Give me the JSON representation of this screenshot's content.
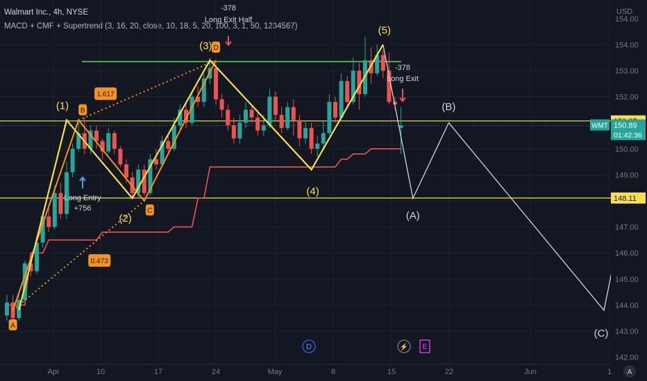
{
  "header": {
    "symbol_line": "Walmart Inc., 4h, NYSE",
    "indicator_line": "MACD + CMF + Supertrend (3, 16, 20, close, 10, 18, 5, 20, 100, 3, 1, 50, 1234567)"
  },
  "colors": {
    "background": "#131722",
    "up": "#26a69a",
    "down": "#ef5350",
    "harmonic": "#f7931a",
    "elliott": "#f9e04b",
    "supertrend": "#ef5350",
    "resistance": "#4caf50",
    "projection": "#d1d4dc",
    "price_tag": "#26a69a"
  },
  "chart_data": {
    "type": "candlestick",
    "title": "Walmart Inc., 4h, NYSE",
    "price_unit": "USD",
    "y_ticks": [
      143.0,
      144.0,
      145.0,
      146.0,
      147.0,
      148.0,
      149.0,
      150.0,
      151.0,
      152.0,
      153.0,
      154.0
    ],
    "ylim": [
      142.0,
      155.2
    ],
    "x_ticks": [
      "Apr",
      "10",
      "17",
      "24",
      "May",
      "8",
      "15",
      "22",
      "Jun",
      "1"
    ],
    "candles": [
      [
        0,
        143.6,
        144.1,
        144.4,
        143.4
      ],
      [
        1,
        144.1,
        143.5,
        144.4,
        143.3
      ],
      [
        2,
        143.5,
        144.2,
        144.5,
        143.4
      ],
      [
        3,
        144.2,
        145.6,
        145.7,
        144.1
      ],
      [
        4,
        145.6,
        145.3,
        145.9,
        145.1
      ],
      [
        5,
        145.3,
        146.4,
        146.6,
        145.2
      ],
      [
        6,
        146.4,
        147.4,
        147.6,
        146.2
      ],
      [
        7,
        147.4,
        147.0,
        147.8,
        146.8
      ],
      [
        8,
        147.0,
        148.3,
        148.6,
        146.9
      ],
      [
        9,
        148.3,
        147.5,
        148.7,
        147.3
      ],
      [
        10,
        147.5,
        149.1,
        149.5,
        147.3
      ],
      [
        11,
        149.1,
        150.0,
        150.2,
        148.9
      ],
      [
        12,
        150.0,
        150.6,
        151.0,
        149.9
      ],
      [
        13,
        150.6,
        150.0,
        151.2,
        149.8
      ],
      [
        14,
        150.0,
        150.7,
        150.9,
        149.8
      ],
      [
        15,
        150.7,
        150.3,
        150.9,
        150.0
      ],
      [
        16,
        150.3,
        149.9,
        150.4,
        149.6
      ],
      [
        17,
        149.9,
        150.6,
        150.8,
        149.8
      ],
      [
        18,
        150.6,
        150.0,
        150.7,
        149.8
      ],
      [
        19,
        150.0,
        149.4,
        150.1,
        149.3
      ],
      [
        20,
        149.4,
        148.9,
        149.6,
        148.7
      ],
      [
        21,
        148.9,
        148.3,
        149.1,
        148.1
      ],
      [
        22,
        148.3,
        149.2,
        149.4,
        148.1
      ],
      [
        23,
        149.2,
        148.3,
        149.4,
        148.2
      ],
      [
        24,
        148.3,
        149.6,
        149.8,
        148.2
      ],
      [
        25,
        149.6,
        149.4,
        150.0,
        149.2
      ],
      [
        26,
        149.4,
        150.3,
        150.5,
        149.3
      ],
      [
        27,
        150.3,
        150.0,
        150.6,
        149.8
      ],
      [
        28,
        150.0,
        150.9,
        151.2,
        149.9
      ],
      [
        29,
        150.9,
        151.5,
        151.7,
        150.7
      ],
      [
        30,
        151.5,
        151.0,
        151.8,
        150.8
      ],
      [
        31,
        151.0,
        152.0,
        152.2,
        150.9
      ],
      [
        32,
        152.0,
        151.8,
        152.4,
        151.6
      ],
      [
        33,
        151.8,
        152.7,
        152.9,
        151.6
      ],
      [
        34,
        152.7,
        153.1,
        153.5,
        152.5
      ],
      [
        35,
        153.1,
        151.9,
        153.3,
        151.7
      ],
      [
        36,
        151.9,
        151.5,
        152.1,
        151.2
      ],
      [
        37,
        151.5,
        150.9,
        151.7,
        150.7
      ],
      [
        38,
        150.9,
        150.4,
        151.2,
        150.2
      ],
      [
        39,
        150.4,
        151.0,
        151.3,
        150.2
      ],
      [
        40,
        151.0,
        151.5,
        151.8,
        150.8
      ],
      [
        41,
        151.5,
        151.2,
        151.7,
        151.0
      ],
      [
        42,
        151.2,
        150.7,
        151.5,
        150.5
      ],
      [
        43,
        150.7,
        150.9,
        151.3,
        150.5
      ],
      [
        44,
        150.9,
        152.0,
        152.3,
        150.8
      ],
      [
        45,
        152.0,
        151.3,
        152.2,
        151.1
      ],
      [
        46,
        151.3,
        150.8,
        151.6,
        150.6
      ],
      [
        47,
        150.8,
        151.6,
        151.8,
        150.7
      ],
      [
        48,
        151.6,
        151.1,
        151.9,
        150.5
      ],
      [
        49,
        151.1,
        150.4,
        151.3,
        150.1
      ],
      [
        50,
        150.4,
        150.8,
        151.1,
        150.2
      ],
      [
        51,
        150.8,
        150.0,
        151.0,
        149.8
      ],
      [
        52,
        150.0,
        150.2,
        150.5,
        149.7
      ],
      [
        53,
        150.2,
        150.6,
        151.1,
        150.0
      ],
      [
        54,
        150.6,
        151.8,
        152.1,
        150.5
      ],
      [
        55,
        151.8,
        151.2,
        152.0,
        151.0
      ],
      [
        56,
        151.2,
        152.6,
        152.9,
        151.1
      ],
      [
        57,
        152.6,
        151.8,
        152.8,
        151.6
      ],
      [
        58,
        151.8,
        153.0,
        153.5,
        151.7
      ],
      [
        59,
        153.0,
        152.1,
        153.3,
        151.5
      ],
      [
        60,
        152.1,
        153.4,
        154.3,
        152.0
      ],
      [
        61,
        153.4,
        152.9,
        153.9,
        152.5
      ],
      [
        62,
        152.9,
        153.6,
        154.0,
        152.8
      ],
      [
        63,
        153.6,
        153.0,
        153.8,
        152.7
      ],
      [
        64,
        153.0,
        151.8,
        153.7,
        151.7
      ],
      [
        65,
        151.8,
        151.7,
        152.0,
        151.5
      ],
      [
        66,
        150.8,
        150.9,
        151.6,
        149.8
      ]
    ],
    "supertrend": [
      [
        0,
        144.0
      ],
      [
        3,
        144.0
      ],
      [
        4,
        146.0
      ],
      [
        6,
        146.0
      ],
      [
        7,
        146.5
      ],
      [
        15,
        146.5
      ],
      [
        16,
        146.8
      ],
      [
        27,
        146.8
      ],
      [
        28,
        147.0
      ],
      [
        31,
        147.0
      ],
      [
        32,
        148.1
      ],
      [
        33,
        148.1
      ],
      [
        34,
        149.3
      ],
      [
        55,
        149.3
      ],
      [
        56,
        149.6
      ],
      [
        57,
        149.6
      ],
      [
        58,
        149.8
      ],
      [
        60,
        149.8
      ],
      [
        61,
        150.0
      ],
      [
        66,
        150.0
      ]
    ],
    "resistance_level": 153.35,
    "horizontal_levels": [
      151.07,
      148.11
    ],
    "last_price": 150.89,
    "countdown": "01:42:36",
    "ticker": "WMT",
    "harmonic_points": [
      {
        "label": "A",
        "x": 1,
        "price": 143.8
      },
      {
        "label": "B",
        "x": 12,
        "price": 151.1
      },
      {
        "label": "C",
        "x": 23,
        "price": 148.0
      },
      {
        "label": "D",
        "x": 35,
        "price": 153.4
      }
    ],
    "fib_ratios": [
      "1.617",
      "0.473"
    ],
    "elliott_points": [
      {
        "label": "(1)",
        "x": 10,
        "price": 151.1
      },
      {
        "label": "(2)",
        "x": 21,
        "price": 148.1
      },
      {
        "label": "(3)",
        "x": 34,
        "price": 153.4
      },
      {
        "label": "(4)",
        "x": 51,
        "price": 149.2
      },
      {
        "label": "(5)",
        "x": 63,
        "price": 154.0
      }
    ],
    "projection_points": [
      {
        "label": "",
        "x": 63,
        "price": 154.0
      },
      {
        "label": "(A)",
        "x": 68,
        "price": 148.1
      },
      {
        "label": "(B)",
        "x": 74,
        "price": 151.0
      },
      {
        "label": "(C)",
        "x": 100,
        "price": 143.8
      },
      {
        "label": "",
        "x": 109,
        "price": 154.0
      }
    ],
    "annotations": {
      "exit_half": [
        "-378",
        "Long Exit Half"
      ],
      "exit": [
        "-378",
        "Long Exit"
      ],
      "entry": [
        "Long Entry",
        "+756"
      ]
    },
    "event_markers": [
      "D",
      "E"
    ]
  }
}
